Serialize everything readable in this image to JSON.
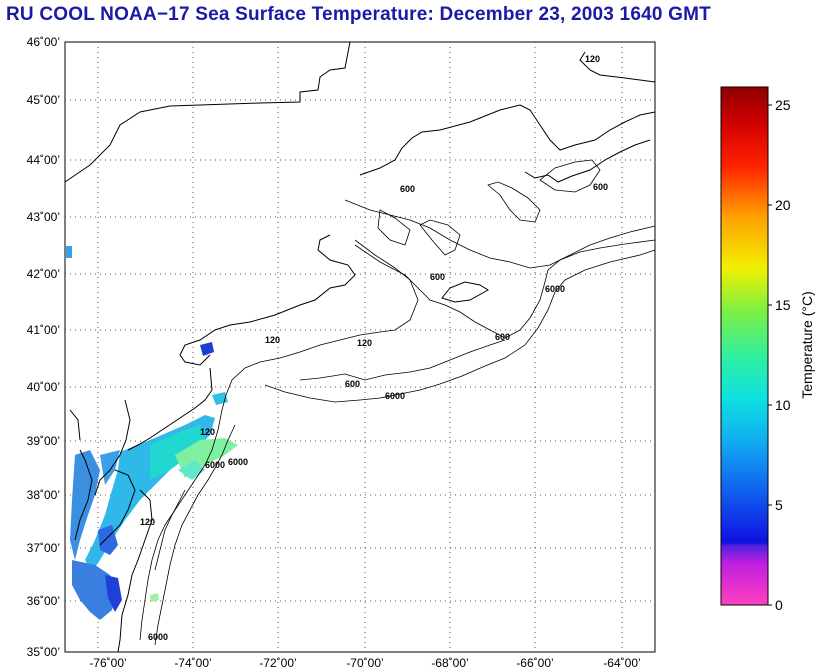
{
  "title": "RU COOL  NOAA−17  Sea Surface Temperature:  December 23, 2003 1640 GMT",
  "map": {
    "lat_labels": [
      "46˚00’",
      "45˚00’",
      "44˚00’",
      "43˚00’",
      "42˚00’",
      "41˚00’",
      "40˚00’",
      "39˚00’",
      "38˚00’",
      "37˚00’",
      "36˚00’",
      "35˚00’"
    ],
    "lon_labels": [
      "-76˚00’",
      "-74˚00’",
      "-72˚00’",
      "-70˚00’",
      "-68˚00’",
      "-66˚00’",
      "-64˚00’"
    ],
    "contour_labels": [
      "120",
      "120",
      "120",
      "120",
      "600",
      "600",
      "600",
      "600",
      "600",
      "6000",
      "6000",
      "6000",
      "6000",
      "120",
      "6000"
    ]
  },
  "colorbar": {
    "label": "Temperature (°C)",
    "ticks": [
      "0",
      "5",
      "10",
      "15",
      "20",
      "25"
    ],
    "range": [
      0,
      26
    ]
  }
}
